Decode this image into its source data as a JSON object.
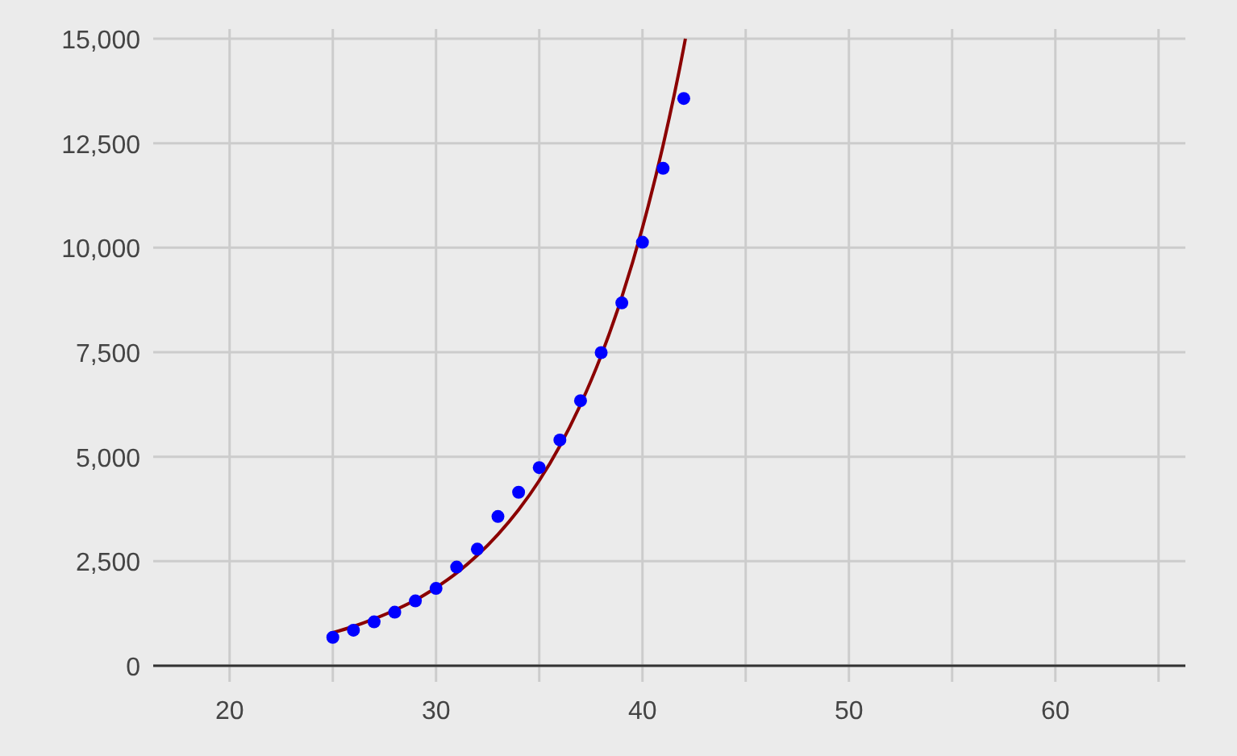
{
  "chart_data": {
    "type": "scatter",
    "xlim": [
      16.3,
      66.3
    ],
    "ylim": [
      0,
      15000
    ],
    "xticks": [
      20,
      {
        "value": 25,
        "label": null
      },
      30,
      {
        "value": 35,
        "label": null
      },
      40,
      {
        "value": 45,
        "label": null
      },
      50,
      {
        "value": 55,
        "label": null
      },
      60,
      {
        "value": 65,
        "label": null
      }
    ],
    "yticks": [
      {
        "value": 0,
        "label": "0"
      },
      {
        "value": 2500,
        "label": "2,500"
      },
      {
        "value": 5000,
        "label": "5,000"
      },
      {
        "value": 7500,
        "label": "7,500"
      },
      {
        "value": 10000,
        "label": "10,000"
      },
      {
        "value": 12500,
        "label": "12,500"
      },
      {
        "value": 15000,
        "label": "15,000"
      }
    ],
    "grid": true,
    "series": [
      {
        "color": "#0000ff",
        "marker": "circle",
        "x": [
          25,
          26,
          27,
          28,
          29,
          30,
          31,
          32,
          33,
          34,
          35,
          36,
          37,
          38,
          39,
          40,
          41,
          42
        ],
        "values": [
          680,
          850,
          1050,
          1280,
          1550,
          1850,
          2360,
          2790,
          3570,
          4150,
          4740,
          5400,
          6340,
          7490,
          8680,
          10130,
          11900,
          13570
        ]
      },
      {
        "type": "line",
        "color": "#8b0000",
        "marker": "none",
        "line_style": "solid",
        "x": [
          25,
          26,
          27,
          28,
          29,
          30,
          31,
          32,
          33,
          34,
          35,
          36,
          37,
          38,
          39,
          40,
          41,
          42,
          42.08
        ],
        "values": [
          790,
          940,
          1120,
          1330,
          1570,
          1870,
          2220,
          2640,
          3140,
          3730,
          4430,
          5260,
          6250,
          7420,
          8820,
          10480,
          12450,
          14790,
          15000
        ]
      }
    ]
  }
}
